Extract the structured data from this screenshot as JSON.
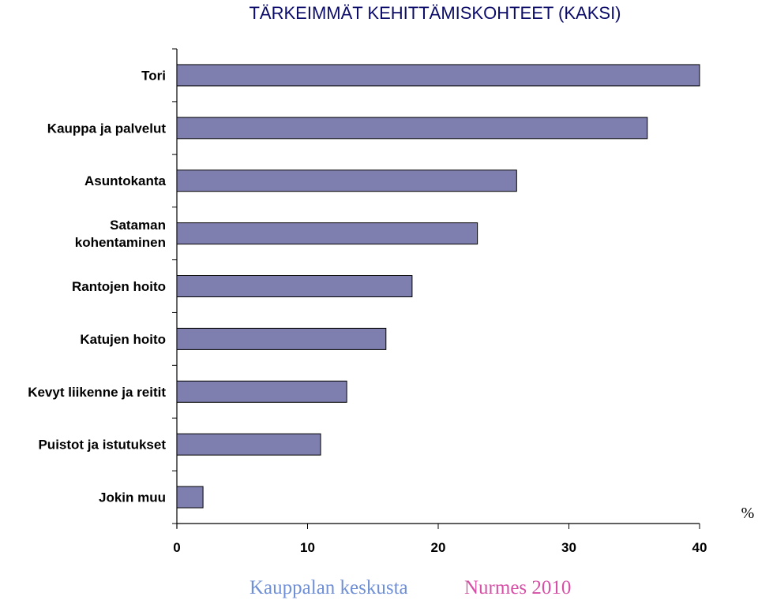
{
  "chart_data": {
    "type": "bar",
    "orientation": "horizontal",
    "title": "TÄRKEIMMÄT KEHITTÄMISKOHTEET (KAKSI)",
    "categories": [
      "Tori",
      "Kauppa ja palvelut",
      "Asuntokanta",
      "Sataman kohentaminen",
      "Rantojen hoito",
      "Katujen hoito",
      "Kevyt liikenne ja reitit",
      "Puistot ja istutukset",
      "Jokin muu"
    ],
    "category_lines": [
      [
        "Tori"
      ],
      [
        "Kauppa ja palvelut"
      ],
      [
        "Asuntokanta"
      ],
      [
        "Sataman",
        "kohentaminen"
      ],
      [
        "Rantojen hoito"
      ],
      [
        "Katujen hoito"
      ],
      [
        "Kevyt liikenne ja reitit"
      ],
      [
        "Puistot ja istutukset"
      ],
      [
        "Jokin muu"
      ]
    ],
    "values": [
      40,
      36,
      26,
      23,
      18,
      16,
      13,
      11,
      2
    ],
    "xlim": [
      0,
      40
    ],
    "xticks": [
      "0",
      "10",
      "20",
      "30",
      "40"
    ],
    "xticks_values": [
      0,
      10,
      20,
      30,
      40
    ],
    "unit_label": "%",
    "bar_color": "#7f7faf",
    "grid": false,
    "legend": "none"
  },
  "footer": {
    "left": "Kauppalan keskusta",
    "right": "Nurmes 2010"
  }
}
